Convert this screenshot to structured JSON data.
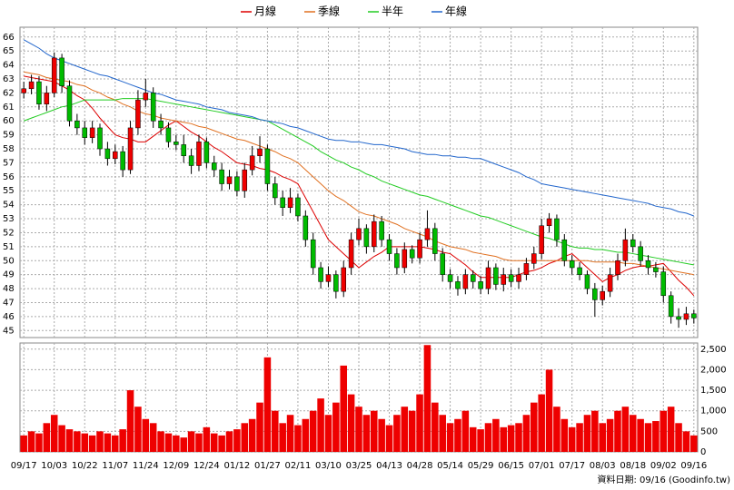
{
  "chart_data": [
    {
      "type": "candlestick",
      "categories": [
        "09/17",
        null,
        null,
        null,
        "10/03",
        null,
        null,
        null,
        "10/22",
        null,
        null,
        null,
        "11/07",
        null,
        null,
        null,
        "11/24",
        null,
        null,
        null,
        "12/09",
        null,
        null,
        null,
        "12/24",
        null,
        null,
        null,
        "01/12",
        null,
        null,
        null,
        "01/27",
        null,
        null,
        null,
        "02/11",
        null,
        null,
        null,
        "03/10",
        null,
        null,
        null,
        "03/25",
        null,
        null,
        null,
        "04/13",
        null,
        null,
        null,
        "04/28",
        null,
        null,
        null,
        "05/14",
        null,
        null,
        null,
        "05/29",
        null,
        null,
        null,
        "06/15",
        null,
        null,
        null,
        "07/01",
        null,
        null,
        null,
        "07/17",
        null,
        null,
        null,
        "08/03",
        null,
        null,
        null,
        "08/18",
        null,
        null,
        null,
        "09/02",
        null,
        null,
        null,
        "09/16"
      ],
      "open": [
        62.0,
        62.3,
        62.8,
        61.2,
        62.0,
        64.5,
        62.5,
        60.0,
        59.5,
        58.8,
        59.5,
        58.0,
        57.3,
        57.8,
        56.5,
        59.5,
        61.5,
        62.0,
        60.0,
        59.5,
        58.5,
        58.3,
        57.5,
        56.8,
        58.5,
        57.0,
        56.5,
        55.5,
        56.0,
        55.0,
        56.5,
        57.5,
        58.0,
        55.5,
        54.5,
        53.8,
        54.5,
        53.2,
        51.5,
        49.5,
        48.5,
        49.0,
        47.8,
        49.5,
        51.5,
        52.3,
        51.0,
        52.8,
        51.5,
        50.5,
        49.5,
        50.8,
        50.2,
        51.5,
        52.3,
        50.5,
        49.0,
        48.5,
        48.0,
        49.0,
        48.5,
        48.0,
        49.5,
        48.3,
        49.0,
        48.5,
        49.0,
        49.8,
        50.5,
        52.5,
        53.0,
        51.5,
        50.0,
        49.5,
        49.0,
        48.0,
        47.2,
        47.8,
        49.0,
        50.0,
        51.5,
        51.0,
        50.0,
        49.5,
        49.2,
        47.5,
        46.0,
        45.8,
        46.2
      ],
      "high": [
        62.8,
        63.3,
        63.2,
        62.5,
        64.9,
        64.8,
        62.9,
        60.5,
        60.0,
        60.0,
        59.8,
        58.5,
        58.3,
        58.2,
        60.0,
        62.2,
        63.0,
        62.4,
        60.5,
        59.9,
        59.0,
        59.0,
        58.0,
        59.0,
        58.8,
        57.5,
        57.0,
        56.5,
        56.4,
        57.0,
        58.2,
        58.9,
        58.3,
        56.0,
        55.0,
        55.2,
        54.8,
        53.6,
        52.0,
        49.9,
        49.6,
        49.3,
        50.0,
        52.0,
        53.0,
        52.6,
        53.3,
        53.2,
        51.9,
        50.9,
        51.3,
        51.1,
        52.0,
        53.6,
        52.7,
        50.9,
        49.4,
        48.9,
        49.4,
        49.3,
        48.9,
        50.0,
        49.8,
        49.5,
        49.4,
        49.5,
        50.2,
        51.0,
        53.0,
        53.4,
        53.3,
        51.9,
        50.4,
        49.9,
        49.3,
        48.4,
        48.2,
        49.5,
        50.5,
        52.3,
        51.9,
        51.4,
        50.4,
        49.9,
        49.6,
        47.8,
        46.6,
        46.7,
        46.5
      ],
      "low": [
        61.6,
        61.9,
        60.8,
        60.7,
        61.7,
        62.0,
        59.6,
        59.0,
        58.3,
        58.4,
        57.5,
        56.8,
        56.9,
        56.0,
        56.2,
        59.0,
        61.0,
        59.5,
        59.0,
        58.1,
        57.9,
        57.0,
        56.2,
        56.4,
        56.6,
        56.0,
        55.0,
        55.1,
        54.6,
        54.5,
        56.1,
        57.0,
        55.0,
        54.0,
        53.2,
        53.4,
        52.8,
        51.0,
        49.0,
        48.0,
        48.1,
        47.3,
        47.4,
        49.0,
        51.1,
        50.5,
        50.6,
        51.0,
        50.0,
        49.0,
        49.1,
        49.8,
        49.8,
        51.0,
        50.0,
        48.5,
        48.0,
        47.5,
        47.6,
        48.0,
        47.6,
        47.6,
        47.9,
        47.8,
        48.1,
        48.0,
        48.6,
        49.4,
        50.1,
        52.0,
        51.0,
        49.6,
        49.0,
        48.6,
        47.6,
        46.0,
        46.8,
        47.4,
        48.6,
        49.6,
        50.6,
        49.6,
        49.0,
        48.8,
        47.0,
        45.5,
        45.2,
        45.4,
        45.5
      ],
      "close": [
        62.3,
        62.8,
        61.2,
        62.0,
        64.5,
        62.5,
        60.0,
        59.5,
        58.8,
        59.5,
        58.0,
        57.3,
        57.8,
        56.5,
        59.5,
        61.5,
        62.0,
        60.0,
        59.5,
        58.5,
        58.3,
        57.5,
        56.8,
        58.5,
        57.0,
        56.5,
        55.5,
        56.0,
        55.0,
        56.5,
        57.5,
        58.0,
        55.5,
        54.5,
        53.8,
        54.5,
        53.2,
        51.5,
        49.5,
        48.5,
        49.0,
        47.8,
        49.5,
        51.5,
        52.3,
        51.0,
        52.8,
        51.5,
        50.5,
        49.5,
        50.8,
        50.2,
        51.5,
        52.3,
        50.5,
        49.0,
        48.5,
        48.0,
        49.0,
        48.5,
        48.0,
        49.5,
        48.3,
        49.0,
        48.5,
        49.0,
        49.8,
        50.5,
        52.5,
        53.0,
        51.5,
        50.0,
        49.5,
        49.0,
        48.0,
        47.2,
        47.8,
        49.0,
        50.0,
        51.5,
        51.0,
        50.0,
        49.5,
        49.2,
        47.5,
        46.0,
        45.8,
        46.2,
        45.9
      ],
      "up_color": "#ee0000",
      "down_color": "#00bb00",
      "series": [
        {
          "name": "月線",
          "color": "#dd0000",
          "values": [
            63.2,
            63.1,
            63.0,
            62.9,
            62.8,
            62.5,
            62.2,
            61.8,
            61.5,
            60.9,
            60.2,
            59.6,
            59.0,
            58.8,
            58.7,
            58.5,
            58.5,
            58.9,
            59.3,
            59.7,
            60.0,
            59.6,
            59.2,
            58.9,
            58.5,
            58.1,
            57.8,
            57.4,
            57.0,
            56.9,
            56.8,
            56.6,
            56.5,
            56.3,
            56.0,
            55.8,
            55.5,
            54.5,
            53.5,
            52.5,
            51.5,
            51.0,
            50.5,
            50.0,
            49.5,
            49.9,
            50.3,
            50.6,
            51.0,
            51.0,
            51.0,
            51.0,
            51.0,
            50.9,
            50.8,
            50.6,
            50.5,
            50.1,
            49.7,
            49.2,
            48.8,
            48.8,
            48.8,
            48.8,
            48.8,
            49.0,
            49.2,
            49.3,
            49.5,
            49.8,
            50.0,
            50.3,
            50.5,
            50.0,
            49.5,
            49.0,
            48.5,
            48.8,
            49.0,
            49.3,
            49.5,
            49.6,
            49.6,
            49.7,
            49.8,
            49.2,
            48.6,
            48.1,
            47.5
          ]
        },
        {
          "name": "季線",
          "color": "#e07020",
          "values": [
            63.5,
            63.4,
            63.3,
            63.1,
            63.0,
            62.9,
            62.8,
            62.6,
            62.5,
            62.2,
            62.0,
            61.7,
            61.5,
            61.2,
            61.0,
            60.7,
            60.5,
            60.4,
            60.2,
            60.1,
            60.0,
            59.9,
            59.8,
            59.6,
            59.5,
            59.3,
            59.1,
            58.9,
            58.7,
            58.6,
            58.4,
            58.2,
            58.0,
            57.8,
            57.5,
            57.3,
            57.0,
            56.5,
            56.0,
            55.5,
            55.0,
            54.6,
            54.3,
            53.9,
            53.5,
            53.3,
            53.2,
            53.0,
            52.8,
            52.6,
            52.3,
            52.1,
            51.9,
            51.7,
            51.4,
            51.2,
            51.0,
            50.9,
            50.8,
            50.6,
            50.5,
            50.4,
            50.3,
            50.1,
            50.0,
            50.0,
            50.0,
            50.0,
            50.0,
            50.0,
            50.0,
            50.0,
            50.0,
            50.0,
            50.0,
            49.9,
            49.9,
            49.9,
            49.9,
            49.8,
            49.8,
            49.7,
            49.6,
            49.5,
            49.4,
            49.3,
            49.2,
            49.1,
            49.0
          ]
        },
        {
          "name": "半年",
          "color": "#22cc22",
          "values": [
            60.0,
            60.2,
            60.4,
            60.6,
            60.8,
            61.0,
            61.1,
            61.3,
            61.5,
            61.5,
            61.5,
            61.5,
            61.5,
            61.6,
            61.6,
            61.6,
            61.6,
            61.5,
            61.4,
            61.3,
            61.2,
            61.1,
            61.0,
            60.9,
            60.8,
            60.7,
            60.6,
            60.5,
            60.4,
            60.3,
            60.2,
            60.1,
            60.0,
            59.7,
            59.4,
            59.1,
            58.8,
            58.5,
            58.2,
            57.8,
            57.5,
            57.2,
            57.0,
            56.7,
            56.5,
            56.2,
            56.0,
            55.7,
            55.5,
            55.3,
            55.1,
            54.9,
            54.7,
            54.6,
            54.4,
            54.2,
            54.0,
            53.8,
            53.6,
            53.4,
            53.2,
            53.1,
            52.9,
            52.7,
            52.5,
            52.3,
            52.1,
            51.9,
            51.7,
            51.6,
            51.4,
            51.2,
            51.0,
            50.9,
            50.9,
            50.8,
            50.8,
            50.7,
            50.6,
            50.6,
            50.5,
            50.4,
            50.3,
            50.2,
            50.1,
            50.0,
            49.9,
            49.8,
            49.7
          ]
        },
        {
          "name": "年線",
          "color": "#2266cc",
          "values": [
            65.8,
            65.5,
            65.2,
            64.8,
            64.5,
            64.3,
            64.1,
            63.9,
            63.7,
            63.5,
            63.3,
            63.2,
            63.0,
            62.8,
            62.6,
            62.4,
            62.2,
            62.0,
            61.9,
            61.7,
            61.5,
            61.4,
            61.3,
            61.2,
            61.0,
            60.9,
            60.8,
            60.6,
            60.5,
            60.4,
            60.3,
            60.1,
            60.0,
            59.9,
            59.8,
            59.6,
            59.5,
            59.3,
            59.1,
            58.9,
            58.7,
            58.6,
            58.6,
            58.5,
            58.5,
            58.4,
            58.3,
            58.3,
            58.2,
            58.1,
            58.0,
            57.8,
            57.7,
            57.6,
            57.6,
            57.5,
            57.5,
            57.4,
            57.4,
            57.3,
            57.3,
            57.1,
            56.9,
            56.7,
            56.5,
            56.3,
            56.0,
            55.8,
            55.5,
            55.4,
            55.3,
            55.2,
            55.1,
            55.0,
            54.9,
            54.8,
            54.7,
            54.6,
            54.5,
            54.4,
            54.3,
            54.2,
            54.1,
            53.9,
            53.8,
            53.7,
            53.5,
            53.4,
            53.2
          ]
        }
      ],
      "ylim": [
        44.5,
        66.7
      ],
      "yticks": [
        45,
        46,
        47,
        48,
        49,
        50,
        51,
        52,
        53,
        54,
        55,
        56,
        57,
        58,
        59,
        60,
        61,
        62,
        63,
        64,
        65,
        66
      ],
      "grid": true,
      "legend": "top"
    },
    {
      "type": "bar",
      "values": [
        400,
        500,
        450,
        700,
        900,
        650,
        550,
        500,
        450,
        400,
        500,
        450,
        400,
        550,
        1500,
        1100,
        800,
        700,
        500,
        450,
        400,
        350,
        500,
        450,
        600,
        450,
        400,
        500,
        550,
        700,
        800,
        1200,
        2300,
        1000,
        700,
        900,
        650,
        800,
        1000,
        1300,
        900,
        1200,
        2100,
        1400,
        1100,
        900,
        1000,
        800,
        650,
        900,
        1100,
        1000,
        1400,
        2600,
        1200,
        900,
        700,
        800,
        1000,
        600,
        550,
        700,
        800,
        600,
        650,
        700,
        900,
        1200,
        1400,
        2000,
        1100,
        800,
        600,
        700,
        900,
        1000,
        700,
        800,
        1000,
        1100,
        900,
        800,
        700,
        750,
        1000,
        1100,
        700,
        500,
        400
      ],
      "color": "#ee0000",
      "ylim": [
        0,
        2650
      ],
      "yticks": [
        0,
        500,
        {
          "value": 1000,
          "label": "1,000"
        },
        {
          "value": 1500,
          "label": "1,500"
        },
        {
          "value": 2000,
          "label": "2,000"
        },
        {
          "value": 2500,
          "label": "2,500"
        }
      ],
      "grid": true
    }
  ],
  "footer": "資料日期: 09/16  (Goodinfo.tw)"
}
